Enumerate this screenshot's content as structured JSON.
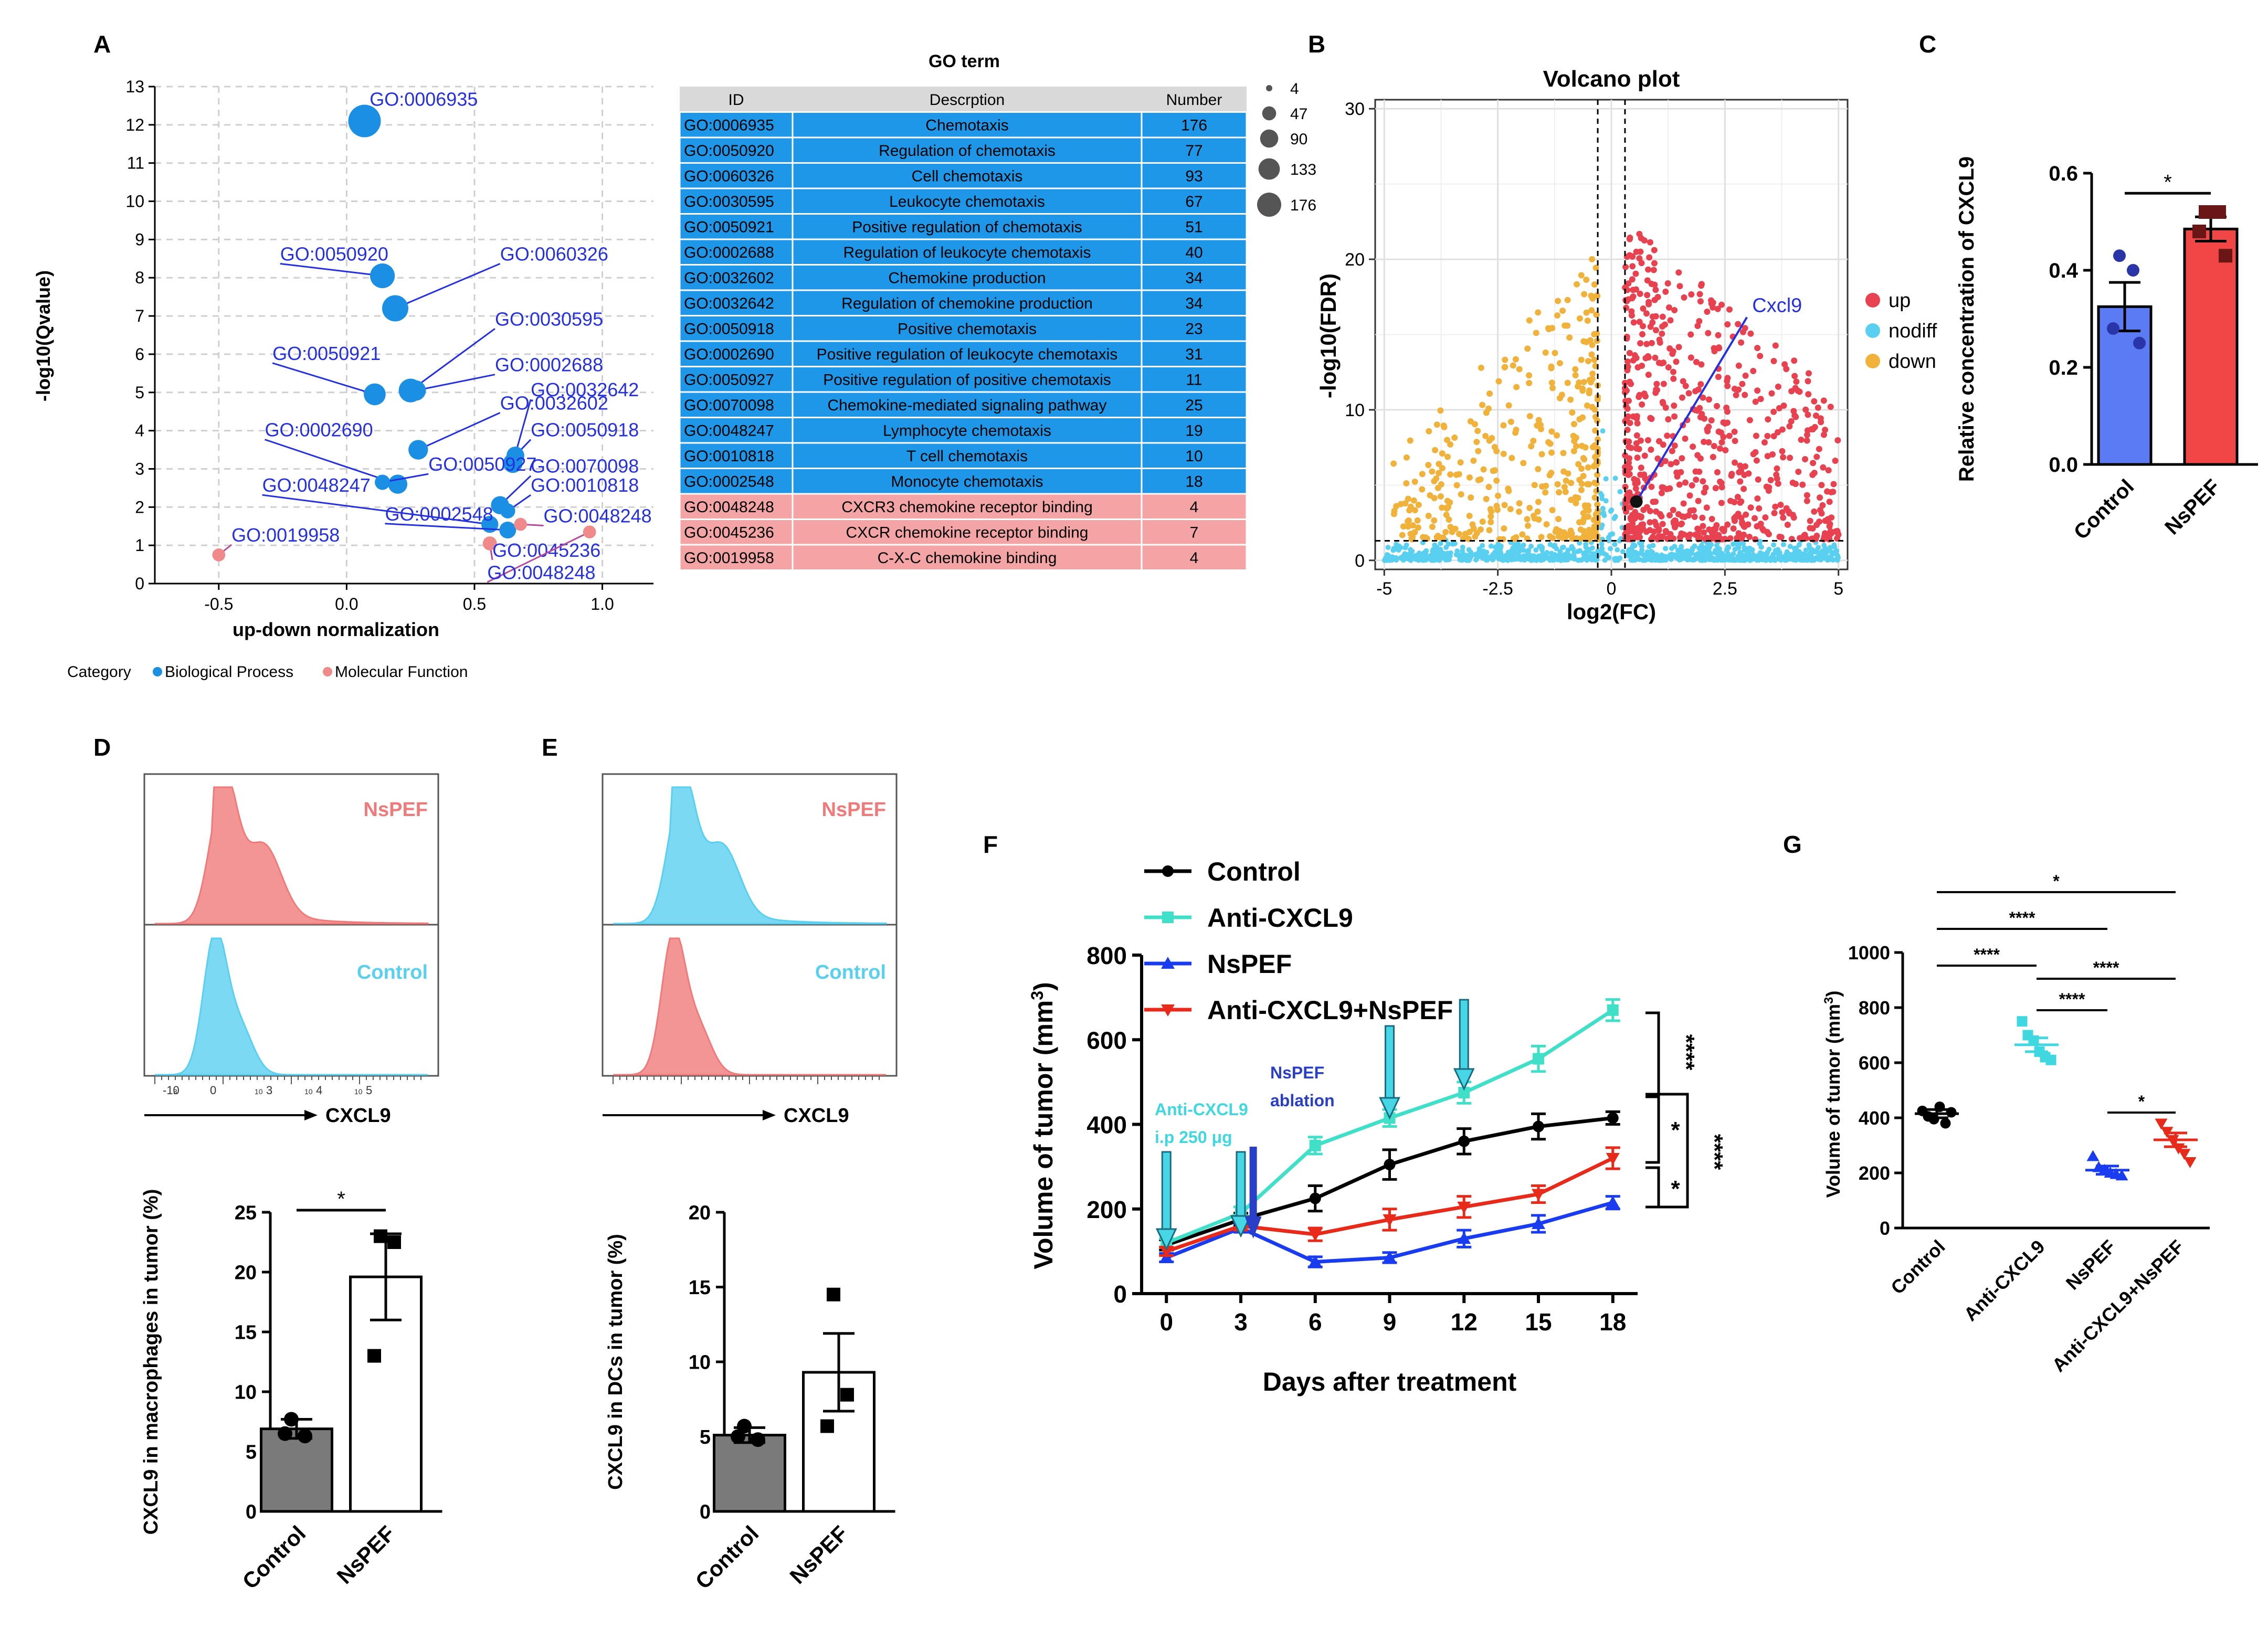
{
  "panel_labels": [
    "A",
    "B",
    "C",
    "D",
    "E",
    "F",
    "G"
  ],
  "chart_data": [
    {
      "panel": "A",
      "type": "scatter",
      "title": "",
      "xlabel": "up-down normalization",
      "ylabel": "-log10(Qvalue)",
      "xlim": [
        -0.75,
        1.2
      ],
      "ylim": [
        0,
        13
      ],
      "xticks": [
        -0.5,
        0.0,
        0.5,
        1.0
      ],
      "xtick_labels": [
        "-0.5",
        "0.0",
        "0.5",
        "1.0"
      ],
      "yticks": [
        0,
        1,
        2,
        3,
        4,
        5,
        6,
        7,
        8,
        9,
        10,
        11,
        12,
        13
      ],
      "legend": {
        "title": "Category",
        "items": [
          "Biological Process",
          "Molecular Function"
        ],
        "colors": [
          "#1a8fe3",
          "#f08a8a"
        ]
      },
      "size_legend": {
        "values": [
          4,
          47,
          90,
          133,
          176
        ],
        "labels": [
          "4",
          "47",
          "90",
          "133",
          "176"
        ]
      },
      "points": [
        {
          "id": "GO:0006935",
          "x": 0.07,
          "y": 12.1,
          "n": 176,
          "cat": 0,
          "lx": 0.09,
          "ly": 12.5
        },
        {
          "id": "GO:0050920",
          "x": 0.14,
          "y": 8.05,
          "n": 77,
          "cat": 0,
          "lx": -0.26,
          "ly": 8.45
        },
        {
          "id": "GO:0060326",
          "x": 0.19,
          "y": 7.2,
          "n": 93,
          "cat": 0,
          "lx": 0.6,
          "ly": 8.45
        },
        {
          "id": "GO:0030595",
          "x": 0.25,
          "y": 5.05,
          "n": 67,
          "cat": 0,
          "lx": 0.58,
          "ly": 6.75
        },
        {
          "id": "GO:0050921",
          "x": 0.11,
          "y": 4.95,
          "n": 51,
          "cat": 0,
          "lx": -0.29,
          "ly": 5.85
        },
        {
          "id": "GO:0002688",
          "x": 0.27,
          "y": 5.05,
          "n": 40,
          "cat": 0,
          "lx": 0.58,
          "ly": 5.55
        },
        {
          "id": "GO:0032602",
          "x": 0.28,
          "y": 3.5,
          "n": 34,
          "cat": 0,
          "lx": 0.6,
          "ly": 4.55
        },
        {
          "id": "GO:0032642",
          "x": 0.65,
          "y": 3.15,
          "n": 34,
          "cat": 0,
          "lx": 0.72,
          "ly": 4.9
        },
        {
          "id": "GO:0050918",
          "x": 0.66,
          "y": 3.35,
          "n": 23,
          "cat": 0,
          "lx": 0.72,
          "ly": 3.85
        },
        {
          "id": "GO:0002690",
          "x": 0.2,
          "y": 2.6,
          "n": 31,
          "cat": 0,
          "lx": -0.32,
          "ly": 3.85
        },
        {
          "id": "GO:0050927",
          "x": 0.14,
          "y": 2.65,
          "n": 11,
          "cat": 0,
          "lx": 0.32,
          "ly": 2.95
        },
        {
          "id": "GO:0070098",
          "x": 0.6,
          "y": 2.05,
          "n": 25,
          "cat": 0,
          "lx": 0.72,
          "ly": 2.9
        },
        {
          "id": "GO:0048247",
          "x": 0.56,
          "y": 1.55,
          "n": 19,
          "cat": 0,
          "lx": -0.33,
          "ly": 2.4
        },
        {
          "id": "GO:0010818",
          "x": 0.63,
          "y": 1.9,
          "n": 10,
          "cat": 0,
          "lx": 0.72,
          "ly": 2.4
        },
        {
          "id": "GO:0002548",
          "x": 0.63,
          "y": 1.4,
          "n": 18,
          "cat": 0,
          "lx": 0.15,
          "ly": 1.65
        },
        {
          "id": "GO:0048248",
          "x": 0.68,
          "y": 1.55,
          "n": 4,
          "cat": 1,
          "lx": 0.77,
          "ly": 1.6
        },
        {
          "id": "GO:0045236",
          "x": 0.56,
          "y": 1.05,
          "n": 7,
          "cat": 1,
          "lx": 0.57,
          "ly": 0.7
        },
        {
          "id": "GO:0019958",
          "x": -0.5,
          "y": 0.75,
          "n": 4,
          "cat": 1,
          "lx": -0.45,
          "ly": 1.1
        },
        {
          "id": "GO:0048248b",
          "label": "GO:0048248",
          "x": 0.95,
          "y": 1.35,
          "n": 4,
          "cat": 1,
          "lx": 0.55,
          "ly": 0.12
        }
      ]
    },
    {
      "panel": "A-table",
      "type": "table",
      "title": "GO term",
      "columns": [
        "ID",
        "Descrption",
        "Number"
      ],
      "rows": [
        [
          "GO:0006935",
          "Chemotaxis",
          "176",
          0
        ],
        [
          "GO:0050920",
          "Regulation of chemotaxis",
          "77",
          0
        ],
        [
          "GO:0060326",
          "Cell chemotaxis",
          "93",
          0
        ],
        [
          "GO:0030595",
          "Leukocyte chemotaxis",
          "67",
          0
        ],
        [
          "GO:0050921",
          "Positive regulation of chemotaxis",
          "51",
          0
        ],
        [
          "GO:0002688",
          "Regulation of leukocyte chemotaxis",
          "40",
          0
        ],
        [
          "GO:0032602",
          "Chemokine production",
          "34",
          0
        ],
        [
          "GO:0032642",
          "Regulation of chemokine production",
          "34",
          0
        ],
        [
          "GO:0050918",
          "Positive chemotaxis",
          "23",
          0
        ],
        [
          "GO:0002690",
          "Positive regulation of leukocyte chemotaxis",
          "31",
          0
        ],
        [
          "GO:0050927",
          "Positive regulation of positive chemotaxis",
          "11",
          0
        ],
        [
          "GO:0070098",
          "Chemokine-mediated signaling pathway",
          "25",
          0
        ],
        [
          "GO:0048247",
          "Lymphocyte chemotaxis",
          "19",
          0
        ],
        [
          "GO:0010818",
          "T cell chemotaxis",
          "10",
          0
        ],
        [
          "GO:0002548",
          "Monocyte chemotaxis",
          "18",
          0
        ],
        [
          "GO:0048248",
          "CXCR3 chemokine receptor binding",
          "4",
          1
        ],
        [
          "GO:0045236",
          "CXCR chemokine receptor binding",
          "7",
          1
        ],
        [
          "GO:0019958",
          "C-X-C chemokine binding",
          "4",
          1
        ]
      ]
    },
    {
      "panel": "B",
      "type": "scatter",
      "title": "Volcano plot",
      "xlabel": "log2(FC)",
      "ylabel": "-log10(FDR)",
      "xlim": [
        -5.2,
        5.2
      ],
      "ylim": [
        -0.6,
        30.6
      ],
      "xticks": [
        -5,
        -2.5,
        0,
        2.5,
        5
      ],
      "xtick_labels": [
        "-5",
        "-2.5",
        "0",
        "2.5",
        "5"
      ],
      "yticks": [
        0,
        10,
        20,
        30
      ],
      "ytick_labels": [
        "0",
        "10",
        "20",
        "30"
      ],
      "thresholds": {
        "fc": [
          -0.3,
          0.3
        ],
        "fdr": 1.3
      },
      "legend": {
        "items": [
          "up",
          "nodiff",
          "down"
        ],
        "colors": [
          "#e8414f",
          "#5ad0f0",
          "#f0b23a"
        ]
      },
      "highlight": {
        "label": "Cxcl9",
        "x": 0.55,
        "y": 3.9,
        "lx": 3.1,
        "ly": 16.5
      }
    },
    {
      "panel": "C",
      "type": "bar",
      "categories": [
        "Control",
        "NsPEF"
      ],
      "values": [
        0.325,
        0.485
      ],
      "errors": [
        0.05,
        0.025
      ],
      "points": [
        [
          0.43,
          0.4,
          0.28,
          0.25
        ],
        [
          0.52,
          0.52,
          0.48,
          0.43
        ]
      ],
      "colors": [
        "#5b7bf5",
        "#f04646"
      ],
      "point_colors": [
        "#2a35a8",
        "#6b1616"
      ],
      "ylabel": "Relative concentration  of CXCL9",
      "ylim": [
        0,
        0.6
      ],
      "yticks": [
        0.0,
        0.2,
        0.4,
        0.6
      ],
      "ytick_labels": [
        "0.0",
        "0.2",
        "0.4",
        "0.6"
      ],
      "significance": "*"
    },
    {
      "panel": "D-hist",
      "type": "area",
      "series": [
        {
          "name": "NsPEF",
          "color": "#f07a7a"
        },
        {
          "name": "Control",
          "color": "#5ad0f0"
        }
      ],
      "xlabel": "CXCL9",
      "xtick_labels": [
        "-10",
        "3",
        "0",
        "10",
        "3",
        "10",
        "4",
        "10",
        "5"
      ]
    },
    {
      "panel": "D",
      "type": "bar",
      "categories": [
        "Control",
        "NsPEF"
      ],
      "values": [
        6.9,
        19.6
      ],
      "errors": [
        0.8,
        3.6
      ],
      "points": [
        [
          7.7,
          6.3,
          6.5
        ],
        [
          23.0,
          22.5,
          13.0
        ]
      ],
      "colors": [
        "#7a7a7a",
        "#ffffff"
      ],
      "ylabel": "CXCL9 in macrophages in tumor (%)",
      "ylim": [
        0,
        25
      ],
      "yticks": [
        0,
        5,
        10,
        15,
        20,
        25
      ],
      "ytick_labels": [
        "0",
        "5",
        "10",
        "15",
        "20",
        "25"
      ],
      "significance": "*"
    },
    {
      "panel": "E-hist",
      "type": "area",
      "series": [
        {
          "name": "NsPEF",
          "color": "#5ad0f0"
        },
        {
          "name": "Control",
          "color": "#f07a7a"
        }
      ],
      "xlabel": "CXCL9"
    },
    {
      "panel": "E",
      "type": "bar",
      "categories": [
        "Control",
        "NsPEF"
      ],
      "values": [
        5.1,
        9.3
      ],
      "errors": [
        0.5,
        2.6
      ],
      "points": [
        [
          5.7,
          4.8,
          5.0
        ],
        [
          14.5,
          7.8,
          5.7
        ]
      ],
      "colors": [
        "#7a7a7a",
        "#ffffff"
      ],
      "ylabel": "CXCL9 in DCs in tumor (%)",
      "ylim": [
        0,
        20
      ],
      "yticks": [
        0,
        5,
        10,
        15,
        20
      ],
      "ytick_labels": [
        "0",
        "5",
        "10",
        "15",
        "20"
      ]
    },
    {
      "panel": "F",
      "type": "line",
      "xlabel": "Days after treatment",
      "ylabel": "Volume of tumor (mm",
      "ylabel_sup": "3",
      "ylabel_end": ")",
      "x": [
        0,
        3,
        6,
        9,
        12,
        15,
        18
      ],
      "xlim": [
        -1,
        19
      ],
      "ylim": [
        0,
        800
      ],
      "yticks": [
        0,
        200,
        400,
        600,
        800
      ],
      "ytick_labels": [
        "0",
        "200",
        "400",
        "600",
        "800"
      ],
      "series": [
        {
          "name": "Control",
          "color": "#000000",
          "marker": "circle",
          "values": [
            115,
            175,
            225,
            305,
            360,
            395,
            415
          ],
          "errors": [
            12,
            15,
            30,
            35,
            30,
            30,
            15
          ]
        },
        {
          "name": "Anti-CXCL9",
          "color": "#40e0c8",
          "marker": "square",
          "values": [
            120,
            190,
            350,
            415,
            475,
            555,
            670
          ],
          "errors": [
            10,
            15,
            20,
            20,
            25,
            30,
            25
          ]
        },
        {
          "name": "NsPEF",
          "color": "#1a3cf0",
          "marker": "triangle",
          "values": [
            85,
            155,
            75,
            85,
            130,
            165,
            215
          ],
          "errors": [
            10,
            10,
            12,
            12,
            20,
            20,
            15
          ]
        },
        {
          "name": "Anti-CXCL9+NsPEF",
          "color": "#e82a1a",
          "marker": "tri-down",
          "values": [
            100,
            160,
            140,
            175,
            205,
            235,
            320
          ],
          "errors": [
            10,
            10,
            15,
            25,
            25,
            20,
            25
          ]
        }
      ],
      "annotations": {
        "anti_cxcl9_label": "Anti-CXCL9",
        "anti_cxcl9_dose": "i.p 250 μg",
        "nspef_label": "NsPEF",
        "ablation_label": "ablation",
        "cyan_arrow_days": [
          0,
          3,
          9,
          12
        ],
        "blue_arrow_day": 3.5,
        "brackets": [
          "****",
          "*",
          "*",
          "****"
        ]
      }
    },
    {
      "panel": "G",
      "type": "scatter",
      "categories": [
        "Control",
        "Anti-CXCL9",
        "NsPEF",
        "Anti-CXCL9+NsPEF"
      ],
      "means": [
        415,
        665,
        210,
        320
      ],
      "errors": [
        15,
        25,
        15,
        25
      ],
      "colors": [
        "#000000",
        "#40d8e0",
        "#1a3cf0",
        "#e82a1a"
      ],
      "points": [
        [
          425,
          405,
          395,
          440,
          380,
          420
        ],
        [
          750,
          700,
          680,
          640,
          620,
          610
        ],
        [
          260,
          220,
          210,
          200,
          195,
          190
        ],
        [
          380,
          350,
          320,
          290,
          270,
          240
        ]
      ],
      "ylabel": "Volume of tumor (mm",
      "ylabel_sup": "3",
      "ylabel_end": ")",
      "ylim": [
        0,
        1000
      ],
      "yticks": [
        0,
        200,
        400,
        600,
        800,
        1000
      ],
      "ytick_labels": [
        "0",
        "200",
        "400",
        "600",
        "800",
        "1000"
      ],
      "comparisons": [
        "*",
        "****",
        "****",
        "****",
        "****",
        "*"
      ]
    }
  ]
}
